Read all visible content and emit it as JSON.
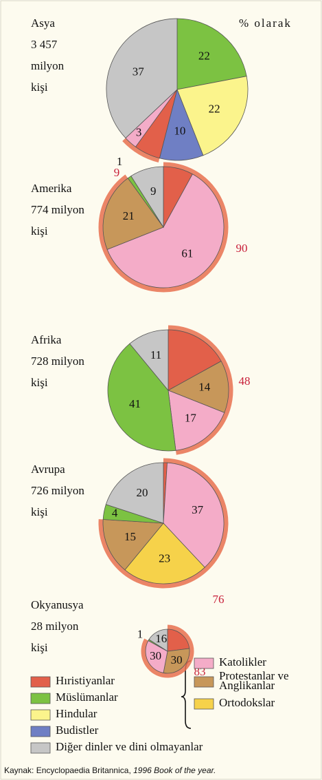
{
  "unit_note": "% olarak",
  "chart_data": [
    {
      "type": "pie",
      "title": [
        "Asya",
        "3 457",
        "milyon",
        "kişi"
      ],
      "categories": [
        "Müslümanlar",
        "Hindular",
        "Budistler",
        "Hıristiyanlar",
        "Katolikler",
        "Diğer dinler ve dini olmayanlar"
      ],
      "values": [
        22,
        22,
        10,
        6,
        3,
        37
      ],
      "value_labels": [
        "22",
        "22",
        "10",
        null,
        "3",
        "37"
      ],
      "colors": [
        "#7cc242",
        "#fbf48c",
        "#6f7fc4",
        "#e2604a",
        "#f4acc8",
        "#c6c6c6"
      ],
      "christian_total": 9
    },
    {
      "type": "pie",
      "title": [
        "Amerika",
        "774 milyon",
        "kişi"
      ],
      "categories": [
        "Hıristiyanlar",
        "Katolikler",
        "Protestanlar ve Anglikanlar",
        "Müslümanlar",
        "Diğer dinler ve dini olmayanlar"
      ],
      "values": [
        8,
        61,
        21,
        1,
        9
      ],
      "value_labels": [
        null,
        "61",
        "21",
        "1",
        "9"
      ],
      "colors": [
        "#e2604a",
        "#f4acc8",
        "#c7975a",
        "#7cc242",
        "#c6c6c6"
      ],
      "christian_total": 90
    },
    {
      "type": "pie",
      "title": [
        "Afrika",
        "728 milyon",
        "kişi"
      ],
      "categories": [
        "Hıristiyanlar",
        "Protestanlar ve Anglikanlar",
        "Katolikler",
        "Müslümanlar",
        "Diğer dinler ve dini olmayanlar"
      ],
      "values": [
        17,
        14,
        17,
        41,
        11
      ],
      "value_labels": [
        null,
        "14",
        "17",
        "41",
        "11"
      ],
      "colors": [
        "#e2604a",
        "#c7975a",
        "#f4acc8",
        "#7cc242",
        "#c6c6c6"
      ],
      "christian_total": 48
    },
    {
      "type": "pie",
      "title": [
        "Avrupa",
        "726 milyon",
        "kişi"
      ],
      "categories": [
        "Hıristiyanlar",
        "Katolikler",
        "Ortodokslar",
        "Protestanlar ve Anglikanlar",
        "Müslümanlar",
        "Diğer dinler ve dini olmayanlar"
      ],
      "values": [
        1,
        37,
        23,
        15,
        4,
        20
      ],
      "value_labels": [
        null,
        "37",
        "23",
        "15",
        "4",
        "20"
      ],
      "colors": [
        "#e2604a",
        "#f4acc8",
        "#f6d24a",
        "#c7975a",
        "#7cc242",
        "#c6c6c6"
      ],
      "christian_total": 76
    },
    {
      "type": "pie",
      "title": [
        "Okyanusya",
        "28 milyon",
        "kişi"
      ],
      "categories": [
        "Hıristiyanlar",
        "Protestanlar ve Anglikanlar",
        "Katolikler",
        "Müslümanlar",
        "Diğer dinler ve dini olmayanlar"
      ],
      "values": [
        23,
        30,
        30,
        1,
        16
      ],
      "value_labels": [
        null,
        "30",
        "30",
        "1",
        "16"
      ],
      "colors": [
        "#e2604a",
        "#c7975a",
        "#f4acc8",
        "#7cc242",
        "#c6c6c6"
      ],
      "christian_total": 83
    }
  ],
  "legend": {
    "left": [
      {
        "name": [
          "Hıristiyanlar"
        ],
        "color": "#e2604a"
      },
      {
        "name": [
          "Müslümanlar"
        ],
        "color": "#7cc242"
      },
      {
        "name": [
          "Hindular"
        ],
        "color": "#fbf48c"
      },
      {
        "name": [
          "Budistler"
        ],
        "color": "#6f7fc4"
      },
      {
        "name": [
          "Diğer dinler ve dini olmayanlar"
        ],
        "color": "#c6c6c6"
      }
    ],
    "right": [
      {
        "name": [
          "Katolikler"
        ],
        "color": "#f4acc8"
      },
      {
        "name": [
          "Protestanlar ve",
          "Anglikanlar"
        ],
        "color": "#c7975a"
      },
      {
        "name": [
          "Ortodokslar"
        ],
        "color": "#f6d24a"
      }
    ]
  },
  "source": {
    "text": "Kaynak: Encyclopaedia Britannica, ",
    "italic": "1996 Book of the year."
  }
}
